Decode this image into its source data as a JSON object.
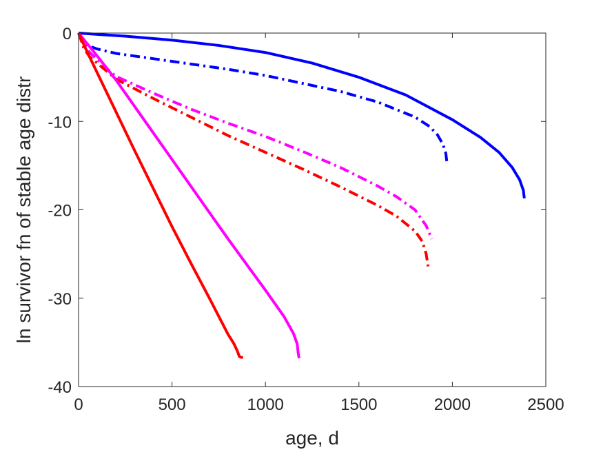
{
  "chart_data": {
    "type": "line",
    "title": "",
    "xlabel": "age, d",
    "ylabel": "ln survivor fn of stable age distr",
    "xlim": [
      0,
      2500
    ],
    "ylim": [
      -40,
      0
    ],
    "xticks": [
      0,
      500,
      1000,
      1500,
      2000,
      2500
    ],
    "yticks": [
      0,
      -10,
      -20,
      -30,
      -40
    ],
    "xtick_labels": [
      "0",
      "500",
      "1000",
      "1500",
      "2000",
      "2500"
    ],
    "ytick_labels": [
      "0",
      "-10",
      "-20",
      "-30",
      "-40"
    ],
    "grid": false,
    "legend": "none",
    "series": [
      {
        "color": "#0000ff",
        "style": "solid",
        "x": [
          0,
          100,
          250,
          500,
          750,
          1000,
          1250,
          1500,
          1750,
          2000,
          2150,
          2250,
          2320,
          2360,
          2380,
          2385
        ],
        "y": [
          0,
          -0.15,
          -0.35,
          -0.8,
          -1.4,
          -2.2,
          -3.4,
          -5.0,
          -7.0,
          -9.8,
          -11.8,
          -13.5,
          -15.2,
          -16.6,
          -17.8,
          -18.7
        ]
      },
      {
        "color": "#0000ff",
        "style": "dashdot",
        "x": [
          0,
          20,
          60,
          100,
          200,
          400,
          600,
          800,
          1000,
          1200,
          1400,
          1600,
          1800,
          1880,
          1920,
          1950,
          1965,
          1970
        ],
        "y": [
          0,
          -1.0,
          -1.5,
          -1.8,
          -2.3,
          -2.9,
          -3.5,
          -4.1,
          -4.8,
          -5.7,
          -6.6,
          -7.8,
          -9.5,
          -10.6,
          -11.5,
          -12.6,
          -13.6,
          -14.5
        ]
      },
      {
        "color": "#ff00ff",
        "style": "dashdot",
        "x": [
          0,
          30,
          60,
          100,
          150,
          200,
          400,
          600,
          800,
          1000,
          1200,
          1400,
          1600,
          1700,
          1800,
          1860,
          1890
        ],
        "y": [
          0,
          -1.3,
          -2.2,
          -3.0,
          -4.0,
          -4.9,
          -6.8,
          -8.6,
          -10.2,
          -11.7,
          -13.4,
          -15.2,
          -17.3,
          -18.5,
          -20.0,
          -21.8,
          -23.3
        ]
      },
      {
        "color": "#ff0000",
        "style": "dashdot",
        "x": [
          0,
          30,
          60,
          100,
          150,
          200,
          400,
          600,
          800,
          1000,
          1200,
          1400,
          1600,
          1700,
          1800,
          1840,
          1860,
          1870
        ],
        "y": [
          0,
          -1.8,
          -2.7,
          -3.4,
          -4.3,
          -5.2,
          -7.4,
          -9.5,
          -11.6,
          -13.5,
          -15.4,
          -17.4,
          -19.5,
          -20.7,
          -22.4,
          -23.6,
          -25.0,
          -26.4
        ]
      },
      {
        "color": "#ff00ff",
        "style": "solid",
        "x": [
          0,
          100,
          200,
          300,
          400,
          500,
          600,
          700,
          800,
          900,
          1000,
          1100,
          1150,
          1170,
          1175,
          1180
        ],
        "y": [
          0,
          -2.6,
          -5.3,
          -8.3,
          -11.3,
          -14.3,
          -17.3,
          -20.3,
          -23.3,
          -26.2,
          -29.1,
          -32.1,
          -34.0,
          -35.2,
          -36.2,
          -36.8
        ]
      },
      {
        "color": "#ff0000",
        "style": "solid",
        "x": [
          0,
          50,
          100,
          200,
          300,
          400,
          500,
          600,
          700,
          800,
          830,
          850,
          860,
          870,
          880
        ],
        "y": [
          0,
          -2.3,
          -4.5,
          -8.9,
          -13.3,
          -17.6,
          -21.9,
          -26.0,
          -30.0,
          -34.1,
          -35.1,
          -36.0,
          -36.6,
          -36.7,
          -36.7
        ]
      }
    ]
  }
}
